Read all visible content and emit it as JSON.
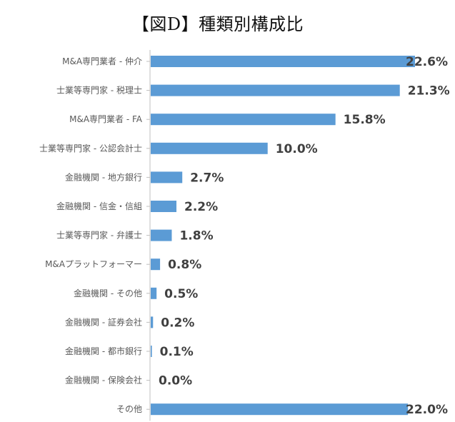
{
  "chart_data": {
    "type": "bar",
    "orientation": "horizontal",
    "title": "【図D】種類別構成比",
    "categories": [
      "M&A専門業者 - 仲介",
      "士業等専門家 - 税理士",
      "M&A専門業者 - FA",
      "士業等専門家 - 公認会計士",
      "金融機関 - 地方銀行",
      "金融機関 - 信金・信組",
      "士業等専門家 - 弁護士",
      "M&Aプラットフォーマー",
      "金融機関 - その他",
      "金融機関 - 証券会社",
      "金融機関 - 都市銀行",
      "金融機関 - 保険会社",
      "その他"
    ],
    "values": [
      22.6,
      21.3,
      15.8,
      10.0,
      2.7,
      2.2,
      1.8,
      0.8,
      0.5,
      0.2,
      0.1,
      0.0,
      22.0
    ],
    "value_labels": [
      "22.6%",
      "21.3%",
      "15.8%",
      "10.0%",
      "2.7%",
      "2.2%",
      "1.8%",
      "0.8%",
      "0.5%",
      "0.2%",
      "0.1%",
      "0.0%",
      "22.0%"
    ],
    "xlim": [
      0,
      22.6
    ],
    "grid": false,
    "legend": "none",
    "bar_color": "#5b9bd5"
  }
}
